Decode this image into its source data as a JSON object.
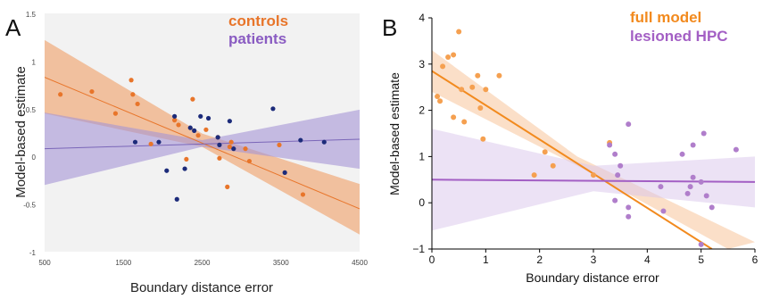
{
  "chart_data": [
    {
      "type": "scatter",
      "panel_label": "A",
      "xlabel": "Boundary distance error",
      "ylabel": "Model-based estimate",
      "xlim": [
        500,
        4500
      ],
      "ylim": [
        -1,
        1.5
      ],
      "xticks": [
        "500",
        "1500",
        "2500",
        "3500",
        "4500"
      ],
      "yticks": [
        "-1",
        "-0.5",
        "0",
        "0.5",
        "1",
        "1.5"
      ],
      "grid": false,
      "legend_position": "top-right",
      "series": [
        {
          "name": "controls",
          "color": "#e8752a",
          "points": [
            [
              700,
              0.65
            ],
            [
              1100,
              0.68
            ],
            [
              1400,
              0.45
            ],
            [
              1600,
              0.8
            ],
            [
              1620,
              0.65
            ],
            [
              1680,
              0.55
            ],
            [
              1850,
              0.13
            ],
            [
              2150,
              0.38
            ],
            [
              2200,
              0.33
            ],
            [
              2300,
              -0.03
            ],
            [
              2380,
              0.6
            ],
            [
              2450,
              0.22
            ],
            [
              2550,
              0.28
            ],
            [
              2700,
              0.2
            ],
            [
              2720,
              -0.02
            ],
            [
              2820,
              -0.32
            ],
            [
              2850,
              0.1
            ],
            [
              2870,
              0.15
            ],
            [
              3050,
              0.08
            ],
            [
              3100,
              -0.05
            ],
            [
              3480,
              0.12
            ],
            [
              3780,
              -0.4
            ]
          ],
          "fit": [
            [
              500,
              0.83
            ],
            [
              4500,
              -0.55
            ]
          ],
          "ci_upper": [
            [
              500,
              1.22
            ],
            [
              2500,
              0.24
            ],
            [
              4500,
              -0.29
            ]
          ],
          "ci_lower": [
            [
              500,
              0.45
            ],
            [
              2500,
              0.1
            ],
            [
              4500,
              -0.82
            ]
          ]
        },
        {
          "name": "patients",
          "color": "#1c2b7a",
          "points": [
            [
              1650,
              0.15
            ],
            [
              1950,
              0.15
            ],
            [
              2050,
              -0.15
            ],
            [
              2150,
              0.42
            ],
            [
              2180,
              -0.45
            ],
            [
              2280,
              -0.13
            ],
            [
              2350,
              0.3
            ],
            [
              2400,
              0.27
            ],
            [
              2480,
              0.42
            ],
            [
              2580,
              0.4
            ],
            [
              2700,
              0.2
            ],
            [
              2720,
              0.12
            ],
            [
              2850,
              0.37
            ],
            [
              2900,
              0.08
            ],
            [
              3400,
              0.5
            ],
            [
              3550,
              -0.17
            ],
            [
              3750,
              0.17
            ],
            [
              4050,
              0.15
            ]
          ],
          "fit_color": "#7a66b8",
          "fit": [
            [
              500,
              0.08
            ],
            [
              4500,
              0.18
            ]
          ],
          "ci_upper": [
            [
              500,
              0.46
            ],
            [
              2500,
              0.17
            ],
            [
              4500,
              0.49
            ]
          ],
          "ci_lower": [
            [
              500,
              -0.3
            ],
            [
              2500,
              0.1
            ],
            [
              4500,
              -0.13
            ]
          ]
        }
      ]
    },
    {
      "type": "scatter",
      "panel_label": "B",
      "xlabel": "Boundary distance error",
      "ylabel": "Model-based estimate",
      "xlim": [
        0,
        6
      ],
      "ylim": [
        -1,
        4
      ],
      "xticks": [
        "0",
        "1",
        "2",
        "3",
        "4",
        "5",
        "6"
      ],
      "yticks": [
        "−1",
        "0",
        "1",
        "2",
        "3",
        "4"
      ],
      "grid": false,
      "legend_position": "top-right",
      "series": [
        {
          "name": "full model",
          "color": "#f5a050",
          "points": [
            [
              0.1,
              2.3
            ],
            [
              0.15,
              2.2
            ],
            [
              0.2,
              2.95
            ],
            [
              0.3,
              3.15
            ],
            [
              0.4,
              3.2
            ],
            [
              0.5,
              3.7
            ],
            [
              0.55,
              2.45
            ],
            [
              0.6,
              1.75
            ],
            [
              0.75,
              2.5
            ],
            [
              0.85,
              2.75
            ],
            [
              0.9,
              2.05
            ],
            [
              0.95,
              1.38
            ],
            [
              1.0,
              2.45
            ],
            [
              1.25,
              2.75
            ],
            [
              0.4,
              1.85
            ],
            [
              1.9,
              0.6
            ],
            [
              2.1,
              1.1
            ],
            [
              2.25,
              0.8
            ],
            [
              3.0,
              0.6
            ],
            [
              3.3,
              1.3
            ]
          ],
          "fit_color": "#f28a1e",
          "fit": [
            [
              0,
              2.85
            ],
            [
              5.2,
              -1
            ]
          ],
          "ci_upper": [
            [
              0,
              3.3
            ],
            [
              2.7,
              1.0
            ],
            [
              6,
              -0.85
            ]
          ],
          "ci_lower": [
            [
              0,
              2.4
            ],
            [
              2.7,
              0.8
            ],
            [
              5.5,
              -1
            ]
          ]
        },
        {
          "name": "lesioned HPC",
          "color": "#b07ecb",
          "points": [
            [
              3.3,
              1.25
            ],
            [
              3.4,
              1.05
            ],
            [
              3.5,
              0.8
            ],
            [
              3.45,
              0.6
            ],
            [
              3.4,
              0.05
            ],
            [
              3.65,
              -0.1
            ],
            [
              3.65,
              -0.3
            ],
            [
              3.65,
              1.7
            ],
            [
              4.25,
              0.35
            ],
            [
              4.3,
              -0.18
            ],
            [
              4.65,
              1.05
            ],
            [
              4.75,
              0.2
            ],
            [
              4.8,
              0.35
            ],
            [
              4.85,
              0.55
            ],
            [
              4.85,
              1.25
            ],
            [
              5.0,
              0.45
            ],
            [
              5.05,
              1.5
            ],
            [
              5.1,
              0.15
            ],
            [
              5.2,
              -0.1
            ],
            [
              5.0,
              -0.9
            ],
            [
              5.65,
              1.15
            ]
          ],
          "fit_color": "#a35fc4",
          "fit": [
            [
              0,
              0.5
            ],
            [
              6,
              0.45
            ]
          ],
          "ci_upper": [
            [
              0,
              1.6
            ],
            [
              3.0,
              0.8
            ],
            [
              6,
              1.0
            ]
          ],
          "ci_lower": [
            [
              0,
              -0.6
            ],
            [
              3.0,
              0.25
            ],
            [
              6,
              -0.1
            ]
          ]
        }
      ]
    }
  ]
}
